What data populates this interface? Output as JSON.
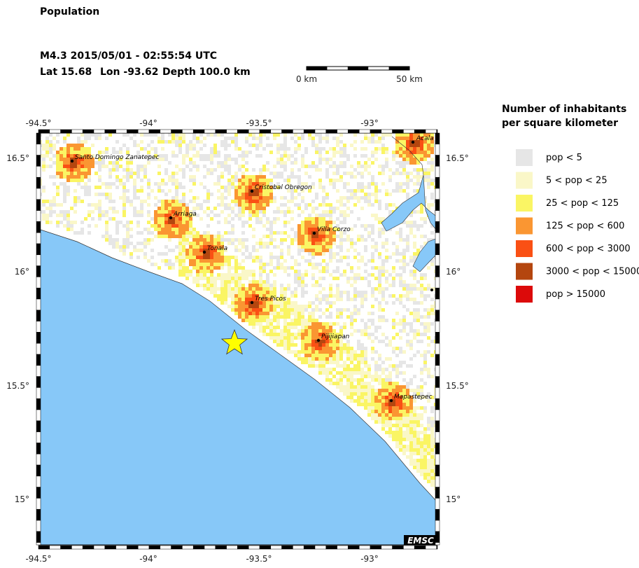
{
  "header": {
    "title": "Population",
    "event": "M4.3  2015/05/01 - 02:55:54 UTC",
    "lat": "Lat 15.68",
    "lon": "Lon -93.62",
    "depth": "Depth 100.0 km"
  },
  "scale_bar": {
    "start": "0 km",
    "end": "50 km"
  },
  "legend": {
    "title": [
      "Number of inhabitants",
      "per square kilometer"
    ],
    "items": [
      {
        "label": "pop < 5",
        "color": "#e6e6e6"
      },
      {
        "label": "5 < pop < 25",
        "color": "#faf7c8"
      },
      {
        "label": "25 < pop < 125",
        "color": "#faf564"
      },
      {
        "label": "125 < pop < 600",
        "color": "#fa9632"
      },
      {
        "label": "600 < pop < 3000",
        "color": "#fa5014"
      },
      {
        "label": "3000 < pop < 15000",
        "color": "#b4460f"
      },
      {
        "label": "pop > 15000",
        "color": "#dc0a0a"
      }
    ]
  },
  "map": {
    "lon_ticks": [
      "-94.5°",
      "-94°",
      "-93.5°",
      "-93°"
    ],
    "lat_ticks": [
      "16.5°",
      "16°",
      "15.5°",
      "15°"
    ],
    "cities": [
      "Acala",
      "Santo Domingo Zanatepec",
      "Cristobal Obregon",
      "Arriaga",
      "Villa Corzo",
      "Tonala",
      "Tres Picos",
      "Pijijiapan",
      "Mapastepec"
    ],
    "credit": "EMSC"
  }
}
